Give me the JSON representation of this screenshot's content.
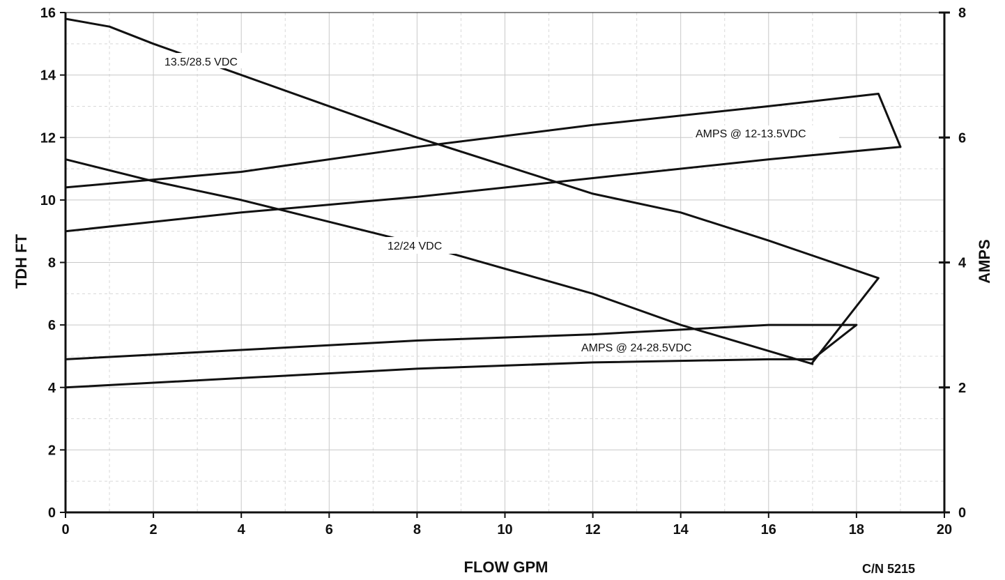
{
  "chart_data": {
    "type": "line",
    "xlabel": "FLOW GPM",
    "ylabel": "TDH FT",
    "y2label": "AMPS",
    "xlim": [
      0,
      20
    ],
    "ylim": [
      0,
      16
    ],
    "y2lim": [
      0,
      8
    ],
    "x_ticks": [
      "0",
      "2",
      "4",
      "6",
      "8",
      "10",
      "12",
      "14",
      "16",
      "18",
      "20"
    ],
    "y_ticks": [
      "0",
      "2",
      "4",
      "6",
      "8",
      "10",
      "12",
      "14",
      "16"
    ],
    "y2_ticks": [
      "0",
      "2",
      "4",
      "6",
      "8"
    ],
    "grid": true,
    "catalog_number": "C/N 5215",
    "series": [
      {
        "name": "13.5/28.5 VDC",
        "axis": "left",
        "x": [
          0,
          1,
          2,
          4,
          6,
          8,
          10,
          12,
          14,
          16,
          18.5,
          17.0
        ],
        "values": [
          15.8,
          15.55,
          15.0,
          14.0,
          13.0,
          12.0,
          11.1,
          10.2,
          9.6,
          8.7,
          7.5,
          4.8
        ]
      },
      {
        "name": "12/24 VDC",
        "axis": "left",
        "x": [
          0,
          2,
          4,
          6,
          8,
          10,
          12,
          14,
          17.0
        ],
        "values": [
          11.3,
          10.6,
          10.0,
          9.3,
          8.6,
          7.8,
          7.0,
          6.0,
          4.75
        ]
      },
      {
        "name": "AMPS @ 12-13.5VDC",
        "axis": "right",
        "x": [
          0,
          4,
          8,
          12,
          16,
          18.5,
          19.0,
          16,
          12,
          8,
          4,
          0
        ],
        "values": [
          5.2,
          5.45,
          5.85,
          6.2,
          6.5,
          6.7,
          5.85,
          5.65,
          5.35,
          5.05,
          4.8,
          4.5
        ]
      },
      {
        "name": "AMPS @ 24-28.5VDC",
        "axis": "right",
        "x": [
          0,
          4,
          8,
          12,
          16,
          18.0,
          17.0,
          16,
          12,
          8,
          4,
          0
        ],
        "values": [
          2.45,
          2.6,
          2.75,
          2.85,
          3.0,
          3.0,
          2.45,
          2.45,
          2.4,
          2.3,
          2.15,
          2.0
        ]
      }
    ],
    "annotations": [
      "13.5/28.5 VDC",
      "AMPS @ 12-13.5VDC",
      "12/24 VDC",
      "AMPS @ 24-28.5VDC"
    ]
  }
}
